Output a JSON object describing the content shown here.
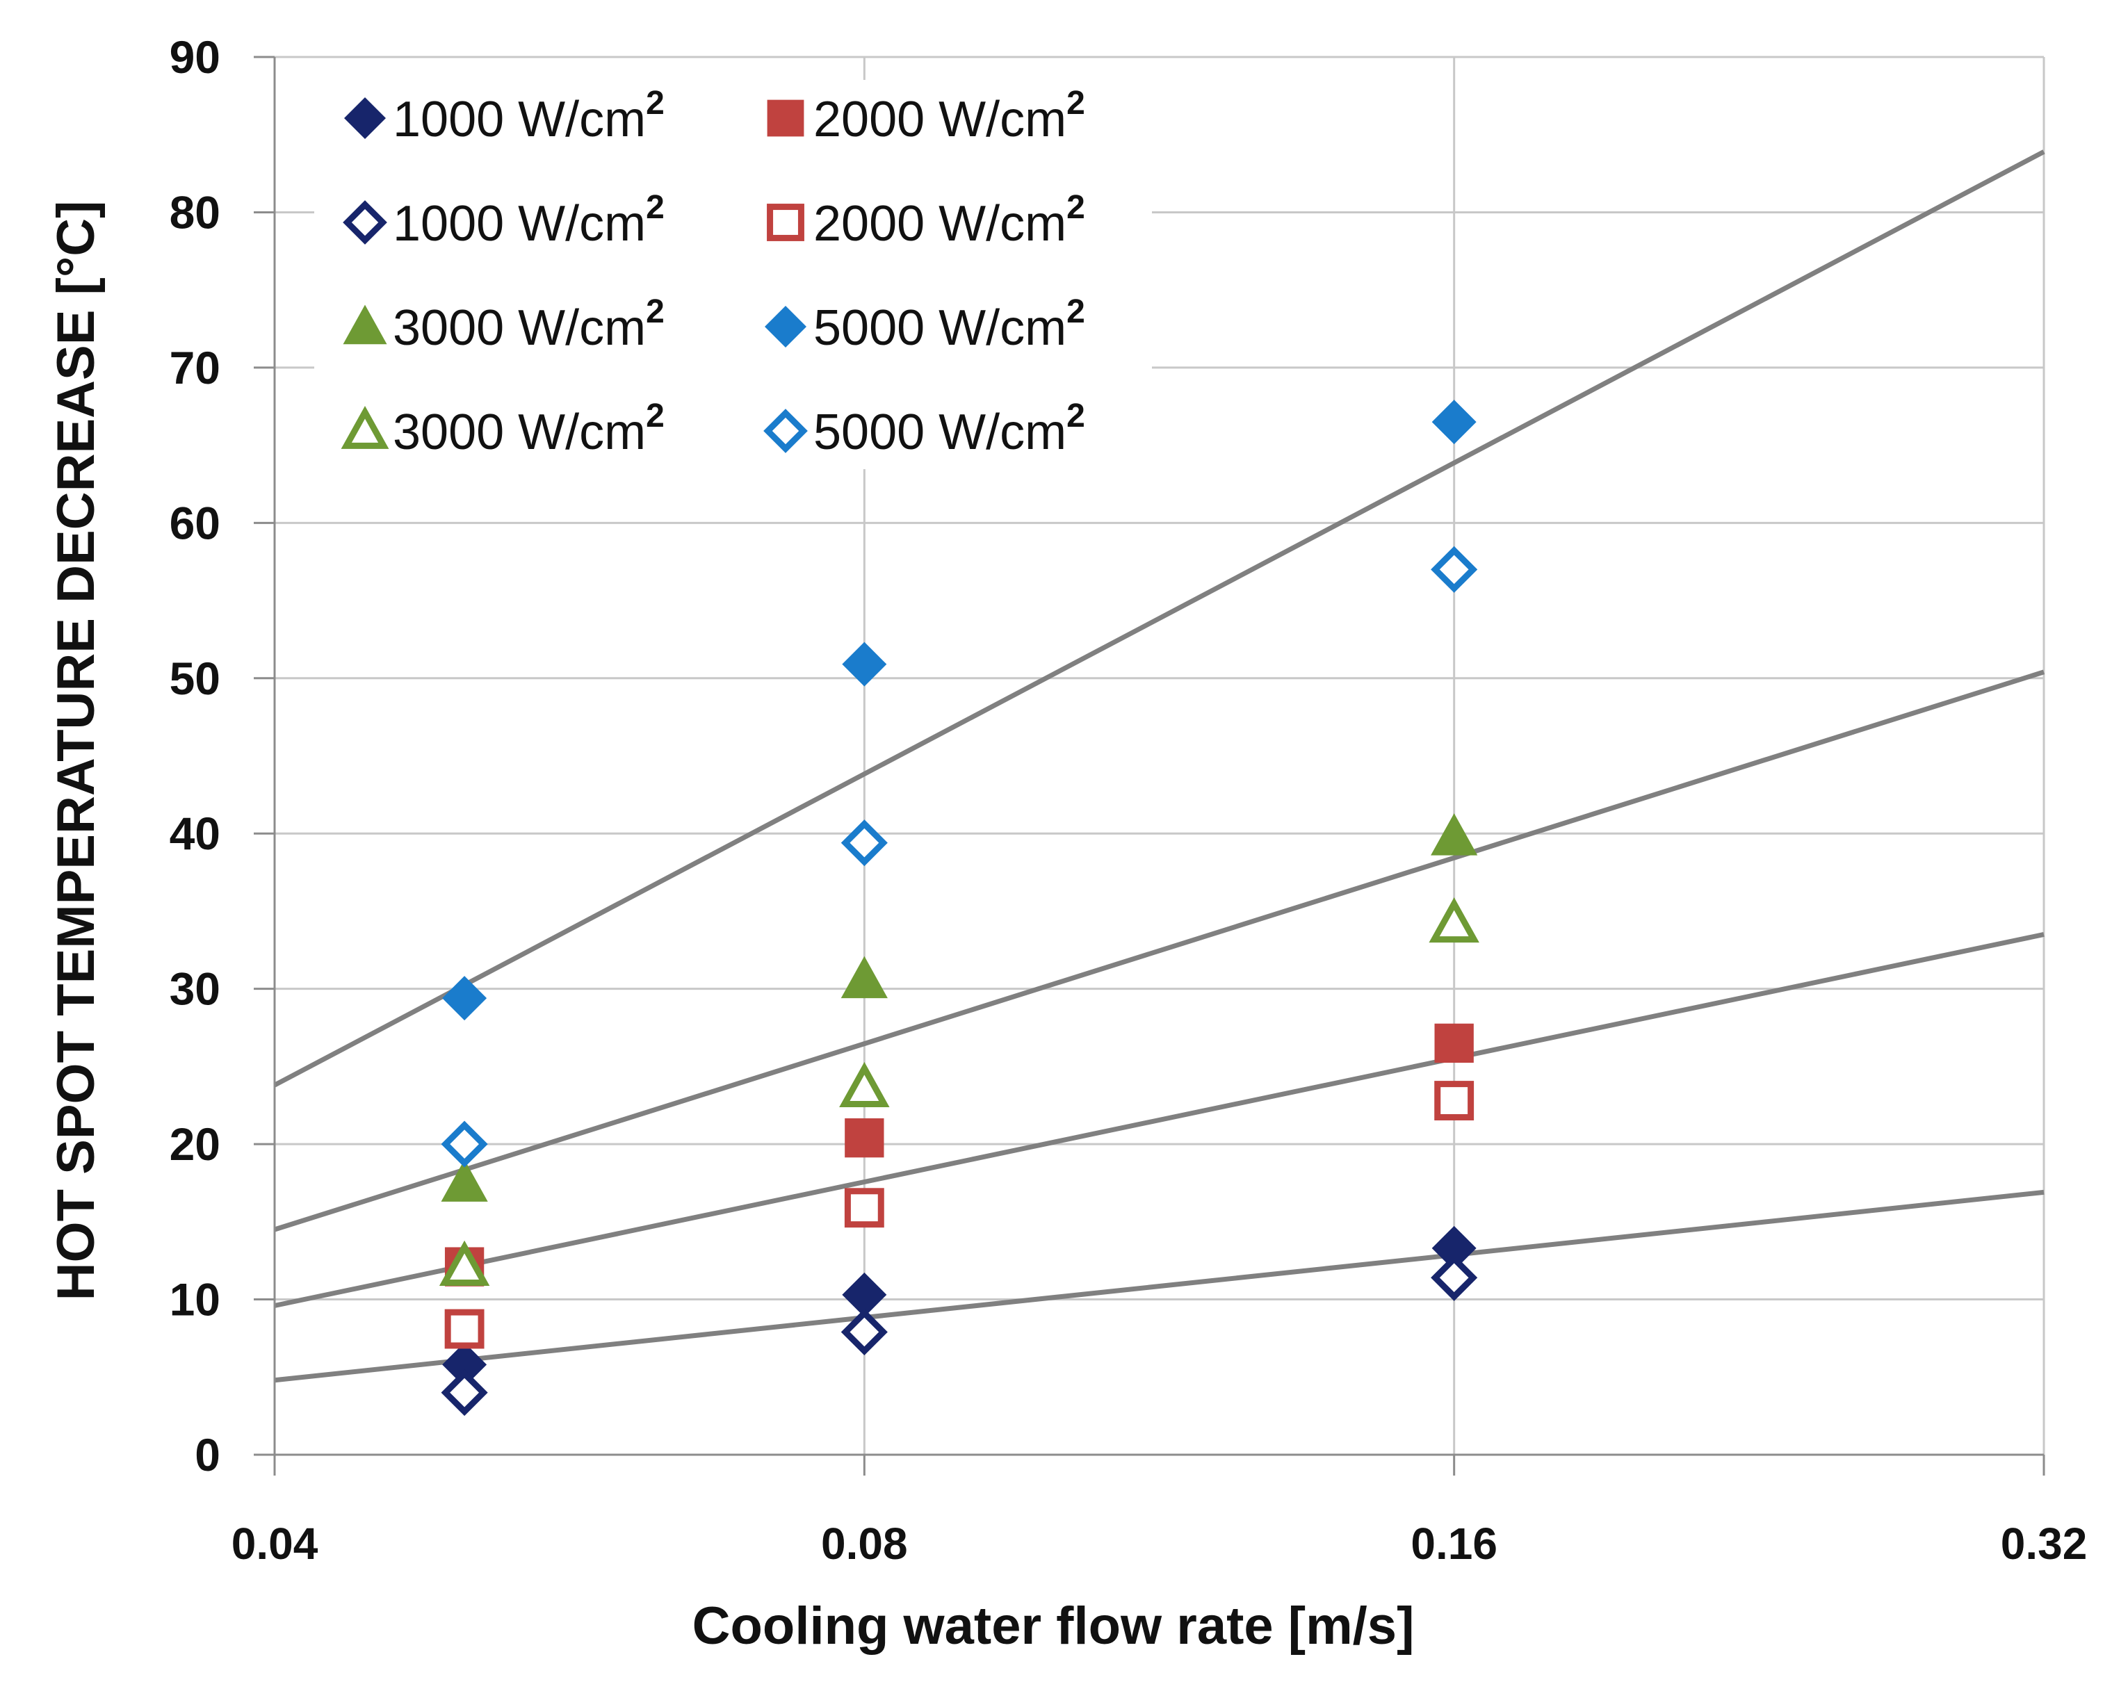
{
  "chart_data": {
    "type": "scatter",
    "title": "",
    "xlabel": "Cooling water flow rate [m/s]",
    "ylabel": "HOT SPOT TEMPERATURE DECREASE [°C]",
    "x_scale": "log2",
    "xlim": [
      0.04,
      0.32
    ],
    "ylim": [
      0,
      90
    ],
    "x_ticks": [
      "0.04",
      "0.08",
      "0.16",
      "0.32"
    ],
    "y_ticks": [
      "0",
      "10",
      "20",
      "30",
      "40",
      "50",
      "60",
      "70",
      "80",
      "90"
    ],
    "grid": "horizontal",
    "legend_position": "top-left",
    "series": [
      {
        "name": "1000 W/cm",
        "sup": "2",
        "marker": "diamond",
        "filled": true,
        "color": "#17256b",
        "x": [
          0.05,
          0.08,
          0.16
        ],
        "y": [
          5.8,
          10.3,
          13.3
        ]
      },
      {
        "name": "1000 W/cm",
        "sup": "2",
        "marker": "diamond",
        "filled": false,
        "color": "#17256b",
        "x": [
          0.05,
          0.08,
          0.16
        ],
        "y": [
          4.0,
          7.9,
          11.4
        ]
      },
      {
        "name": "3000 W/cm",
        "sup": "2",
        "marker": "triangle",
        "filled": true,
        "color": "#6e9a34",
        "x": [
          0.05,
          0.08,
          0.16
        ],
        "y": [
          17.5,
          30.6,
          39.8
        ]
      },
      {
        "name": "3000 W/cm",
        "sup": "2",
        "marker": "triangle",
        "filled": false,
        "color": "#6e9a34",
        "x": [
          0.05,
          0.08,
          0.16
        ],
        "y": [
          12.1,
          23.6,
          34.2
        ]
      },
      {
        "name": "2000 W/cm",
        "sup": "2",
        "marker": "square",
        "filled": true,
        "color": "#c0423f",
        "x": [
          0.05,
          0.08,
          0.16
        ],
        "y": [
          12.1,
          20.4,
          26.5
        ]
      },
      {
        "name": "2000 W/cm",
        "sup": "2",
        "marker": "square",
        "filled": false,
        "color": "#c0423f",
        "x": [
          0.05,
          0.08,
          0.16
        ],
        "y": [
          8.1,
          15.9,
          22.8
        ]
      },
      {
        "name": "5000 W/cm",
        "sup": "2",
        "marker": "diamond",
        "filled": true,
        "color": "#1a7ccc",
        "x": [
          0.05,
          0.08,
          0.16
        ],
        "y": [
          29.4,
          50.9,
          66.5
        ]
      },
      {
        "name": "5000 W/cm",
        "sup": "2",
        "marker": "diamond",
        "filled": false,
        "color": "#1a7ccc",
        "x": [
          0.05,
          0.08,
          0.16
        ],
        "y": [
          20.0,
          39.4,
          57.0
        ]
      }
    ],
    "trendlines": [
      {
        "name": "trendline-1000",
        "x": [
          0.04,
          0.32
        ],
        "y": [
          4.8,
          16.9
        ]
      },
      {
        "name": "trendline-2000",
        "x": [
          0.04,
          0.32
        ],
        "y": [
          9.6,
          33.5
        ]
      },
      {
        "name": "trendline-3000",
        "x": [
          0.04,
          0.32
        ],
        "y": [
          14.5,
          50.4
        ]
      },
      {
        "name": "trendline-5000",
        "x": [
          0.04,
          0.32
        ],
        "y": [
          23.8,
          83.9
        ]
      }
    ]
  },
  "colors": {
    "grid": "#c8c8c8",
    "axis": "#8c8c8c",
    "trendline": "#808080"
  }
}
